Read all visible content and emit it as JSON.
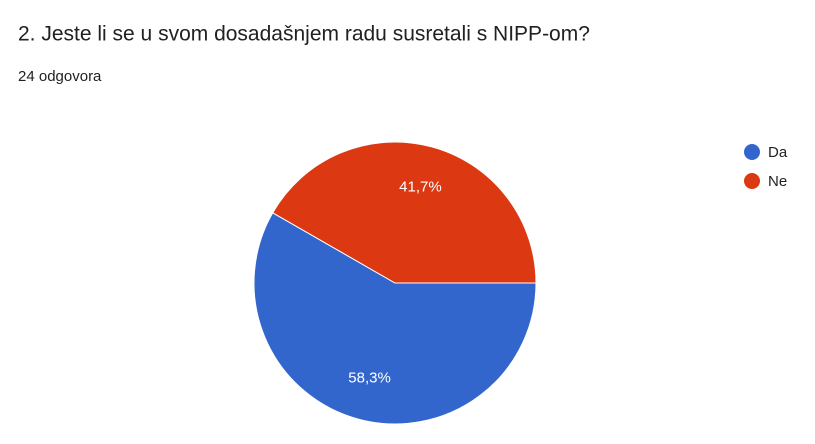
{
  "chart_data": {
    "type": "pie",
    "title": "2. Jeste li se u svom dosadašnjem radu susretali s NIPP-om?",
    "subtitle": "24 odgovora",
    "categories": [
      "Da",
      "Ne"
    ],
    "values": [
      58.3,
      41.7
    ],
    "value_labels": [
      "58,3%",
      "41,7%"
    ],
    "colors": [
      "#3366cc",
      "#dc3912"
    ],
    "legend": "right"
  }
}
